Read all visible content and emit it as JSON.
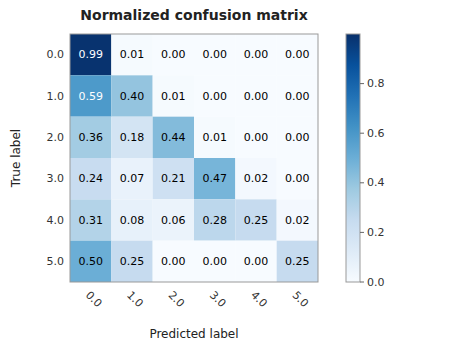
{
  "chart_data": {
    "type": "heatmap",
    "title": "Normalized confusion matrix",
    "xlabel": "Predicted label",
    "ylabel": "True label",
    "categories": [
      "0.0",
      "1.0",
      "2.0",
      "3.0",
      "4.0",
      "5.0"
    ],
    "values": [
      [
        0.99,
        0.01,
        0.0,
        0.0,
        0.0,
        0.0
      ],
      [
        0.59,
        0.4,
        0.01,
        0.0,
        0.0,
        0.0
      ],
      [
        0.36,
        0.18,
        0.44,
        0.01,
        0.0,
        0.0
      ],
      [
        0.24,
        0.07,
        0.21,
        0.47,
        0.02,
        0.0
      ],
      [
        0.31,
        0.08,
        0.06,
        0.28,
        0.25,
        0.02
      ],
      [
        0.5,
        0.25,
        0.0,
        0.0,
        0.0,
        0.25
      ]
    ],
    "value_labels": [
      [
        "0.99",
        "0.01",
        "0.00",
        "0.00",
        "0.00",
        "0.00"
      ],
      [
        "0.59",
        "0.40",
        "0.01",
        "0.00",
        "0.00",
        "0.00"
      ],
      [
        "0.36",
        "0.18",
        "0.44",
        "0.01",
        "0.00",
        "0.00"
      ],
      [
        "0.24",
        "0.07",
        "0.21",
        "0.47",
        "0.02",
        "0.00"
      ],
      [
        "0.31",
        "0.08",
        "0.06",
        "0.28",
        "0.25",
        "0.02"
      ],
      [
        "0.50",
        "0.25",
        "0.00",
        "0.00",
        "0.00",
        "0.25"
      ]
    ],
    "data_labels": true,
    "color": "Blues",
    "colorbar_lim": [
      0.0,
      1.0
    ],
    "colorbar_ticks": [
      {
        "value": 0.0,
        "label": "0.0"
      },
      {
        "value": 0.2,
        "label": "0.2"
      },
      {
        "value": 0.4,
        "label": "0.4"
      },
      {
        "value": 0.6,
        "label": "0.6"
      },
      {
        "value": 0.8,
        "label": "0.8"
      }
    ]
  }
}
